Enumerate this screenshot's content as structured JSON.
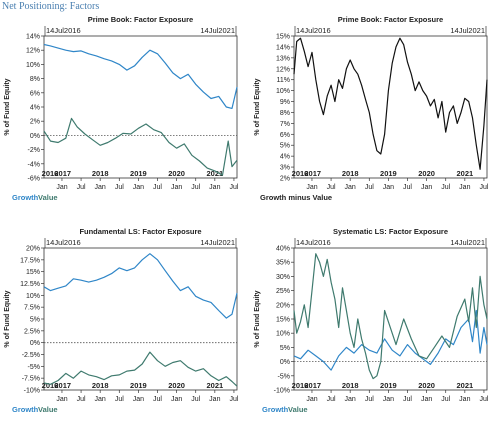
{
  "page": {
    "title": "Net Positioning: Factors"
  },
  "colors": {
    "growth": "#2f86c8",
    "value": "#3f7a6e",
    "spread": "#111111"
  },
  "chart_data": [
    {
      "type": "line",
      "title": "Prime Book: Factor Exposure",
      "start_label": "14Jul2016",
      "end_label": "14Jul2021",
      "ylabel": "% of Fund Equity",
      "ylim": [
        -6,
        14
      ],
      "yticks": [
        14,
        12,
        10,
        8,
        6,
        4,
        2,
        0,
        -2,
        -4,
        -6
      ],
      "ytick_labels": [
        "14%",
        "12%",
        "10%",
        "8%",
        "6%",
        "4%",
        "2%",
        "0%",
        "-2%",
        "-4%",
        "-6%"
      ],
      "xlim": [
        2016.53,
        2021.58
      ],
      "month_ticks": [
        "Jan",
        "Jul",
        "Jan",
        "Jul",
        "Jan",
        "Jul",
        "Jan",
        "Jul",
        "Jan",
        "Jul"
      ],
      "year_labels": [
        "2016",
        "2017",
        "2018",
        "2019",
        "2020",
        "2021"
      ],
      "zero_line": true,
      "legend": [
        "Growth",
        "Value"
      ],
      "series": [
        {
          "name": "Growth",
          "color": "#2f86c8",
          "x": [
            2016.53,
            2016.7,
            2016.9,
            2017.1,
            2017.3,
            2017.5,
            2017.7,
            2017.9,
            2018.1,
            2018.3,
            2018.5,
            2018.7,
            2018.9,
            2019.1,
            2019.3,
            2019.5,
            2019.7,
            2019.9,
            2020.1,
            2020.3,
            2020.5,
            2020.7,
            2020.9,
            2021.1,
            2021.3,
            2021.45,
            2021.58
          ],
          "values": [
            12.8,
            12.6,
            12.3,
            12.0,
            11.8,
            11.9,
            11.5,
            11.2,
            10.8,
            10.5,
            10.0,
            9.2,
            9.8,
            11.0,
            12.0,
            11.5,
            10.2,
            8.8,
            8.0,
            8.6,
            7.2,
            6.1,
            5.2,
            5.5,
            4.0,
            3.8,
            6.8
          ]
        },
        {
          "name": "Value",
          "color": "#3f7a6e",
          "x": [
            2016.53,
            2016.7,
            2016.9,
            2017.1,
            2017.25,
            2017.4,
            2017.6,
            2017.8,
            2018.0,
            2018.2,
            2018.4,
            2018.6,
            2018.8,
            2019.0,
            2019.2,
            2019.4,
            2019.6,
            2019.8,
            2020.0,
            2020.2,
            2020.4,
            2020.6,
            2020.8,
            2021.0,
            2021.2,
            2021.35,
            2021.45,
            2021.58
          ],
          "values": [
            0.6,
            -0.8,
            -1.0,
            -0.4,
            2.4,
            1.2,
            0.2,
            -0.6,
            -1.4,
            -1.0,
            -0.4,
            0.3,
            0.2,
            1.0,
            1.6,
            0.8,
            0.4,
            -1.0,
            -1.8,
            -1.2,
            -2.8,
            -3.6,
            -4.6,
            -5.0,
            -5.6,
            -0.8,
            -4.4,
            -3.5
          ]
        }
      ]
    },
    {
      "type": "line",
      "title": "Prime Book: Factor Exposure",
      "start_label": "14Jul2016",
      "end_label": "14Jul2021",
      "ylabel": "% of Fund Equity",
      "ylim": [
        2,
        15
      ],
      "yticks": [
        15,
        14,
        13,
        12,
        11,
        10,
        9,
        8,
        7,
        6,
        5,
        4,
        3,
        2
      ],
      "ytick_labels": [
        "15%",
        "14%",
        "13%",
        "12%",
        "11%",
        "10%",
        "9%",
        "8%",
        "7%",
        "6%",
        "5%",
        "4%",
        "3%",
        "2%"
      ],
      "xlim": [
        2016.53,
        2021.58
      ],
      "month_ticks": [
        "Jan",
        "Jul",
        "Jan",
        "Jul",
        "Jan",
        "Jul",
        "Jan",
        "Jul",
        "Jan",
        "Jul"
      ],
      "year_labels": [
        "2016",
        "2017",
        "2018",
        "2019",
        "2020",
        "2021"
      ],
      "zero_line": false,
      "legend": [
        "Growth minus Value"
      ],
      "series": [
        {
          "name": "Growth minus Value",
          "color": "#111111",
          "x": [
            2016.53,
            2016.6,
            2016.7,
            2016.8,
            2016.9,
            2017.0,
            2017.1,
            2017.2,
            2017.3,
            2017.4,
            2017.5,
            2017.6,
            2017.7,
            2017.8,
            2017.9,
            2018.0,
            2018.1,
            2018.2,
            2018.3,
            2018.4,
            2018.5,
            2018.6,
            2018.7,
            2018.8,
            2018.9,
            2019.0,
            2019.1,
            2019.2,
            2019.3,
            2019.4,
            2019.5,
            2019.6,
            2019.7,
            2019.8,
            2019.9,
            2020.0,
            2020.1,
            2020.2,
            2020.3,
            2020.4,
            2020.5,
            2020.6,
            2020.7,
            2020.8,
            2020.9,
            2021.0,
            2021.1,
            2021.2,
            2021.3,
            2021.4,
            2021.5,
            2021.58
          ],
          "values": [
            11.5,
            14.5,
            14.8,
            13.6,
            12.2,
            13.5,
            11.0,
            9.0,
            7.8,
            9.5,
            10.5,
            9.0,
            11.0,
            10.2,
            12.0,
            12.8,
            12.0,
            11.5,
            10.5,
            9.2,
            8.0,
            6.0,
            4.5,
            4.2,
            6.0,
            10.0,
            12.5,
            14.0,
            14.8,
            14.2,
            12.6,
            11.5,
            10.0,
            10.8,
            10.0,
            9.5,
            8.6,
            9.2,
            7.5,
            9.0,
            6.2,
            8.0,
            8.6,
            7.0,
            8.0,
            9.3,
            9.0,
            7.5,
            5.0,
            2.8,
            6.8,
            11.0
          ]
        }
      ]
    },
    {
      "type": "line",
      "title": "Fundamental LS: Factor Exposure",
      "start_label": "14Jul2016",
      "end_label": "14Jul2021",
      "ylabel": "% of Fund Equity",
      "ylim": [
        -10,
        20
      ],
      "yticks": [
        20,
        17.5,
        15,
        12.5,
        10,
        7.5,
        5,
        2.5,
        0,
        -2.5,
        -5,
        -7.5,
        -10
      ],
      "ytick_labels": [
        "20%",
        "17.5%",
        "15%",
        "12.5%",
        "10%",
        "7.5%",
        "5%",
        "2.5%",
        "0%",
        "-2.5%",
        "-5%",
        "-7.5%",
        "-10%"
      ],
      "xlim": [
        2016.53,
        2021.58
      ],
      "month_ticks": [
        "Jan",
        "Jul",
        "Jan",
        "Jul",
        "Jan",
        "Jul",
        "Jan",
        "Jul",
        "Jan",
        "Jul"
      ],
      "year_labels": [
        "2016",
        "2017",
        "2018",
        "2019",
        "2020",
        "2021"
      ],
      "zero_line": true,
      "legend": [
        "Growth",
        "Value"
      ],
      "series": [
        {
          "name": "Growth",
          "color": "#2f86c8",
          "x": [
            2016.53,
            2016.7,
            2016.9,
            2017.1,
            2017.3,
            2017.5,
            2017.7,
            2017.9,
            2018.1,
            2018.3,
            2018.5,
            2018.7,
            2018.9,
            2019.1,
            2019.3,
            2019.5,
            2019.7,
            2019.9,
            2020.1,
            2020.3,
            2020.5,
            2020.7,
            2020.9,
            2021.1,
            2021.3,
            2021.45,
            2021.58
          ],
          "values": [
            11.8,
            11.0,
            11.5,
            12.0,
            13.5,
            13.2,
            12.8,
            13.2,
            13.8,
            14.6,
            15.8,
            15.2,
            15.8,
            17.5,
            18.8,
            17.5,
            15.2,
            13.0,
            11.0,
            11.8,
            9.8,
            9.0,
            8.5,
            6.8,
            5.2,
            6.0,
            10.5
          ]
        },
        {
          "name": "Value",
          "color": "#3f7a6e",
          "x": [
            2016.53,
            2016.7,
            2016.9,
            2017.1,
            2017.3,
            2017.5,
            2017.7,
            2017.9,
            2018.1,
            2018.3,
            2018.5,
            2018.7,
            2018.9,
            2019.1,
            2019.3,
            2019.5,
            2019.7,
            2019.9,
            2020.1,
            2020.3,
            2020.5,
            2020.7,
            2020.9,
            2021.1,
            2021.3,
            2021.45,
            2021.58
          ],
          "values": [
            -8.5,
            -8.8,
            -8.0,
            -6.5,
            -7.5,
            -6.0,
            -6.8,
            -7.2,
            -7.8,
            -7.0,
            -6.8,
            -6.0,
            -5.8,
            -4.5,
            -2.0,
            -3.8,
            -5.0,
            -4.2,
            -3.8,
            -5.2,
            -6.0,
            -5.5,
            -7.0,
            -8.0,
            -7.2,
            -8.2,
            -9.2
          ]
        }
      ]
    },
    {
      "type": "line",
      "title": "Systematic LS: Factor Exposure",
      "start_label": "14Jul2016",
      "end_label": "14Jul2021",
      "ylabel": "% of Fund Equity",
      "ylim": [
        -10,
        40
      ],
      "yticks": [
        40,
        35,
        30,
        25,
        20,
        15,
        10,
        5,
        0,
        -5,
        -10
      ],
      "ytick_labels": [
        "40%",
        "35%",
        "30%",
        "25%",
        "20%",
        "15%",
        "10%",
        "5%",
        "0%",
        "-5%",
        "-10%"
      ],
      "xlim": [
        2016.53,
        2021.58
      ],
      "month_ticks": [
        "Jan",
        "Jul",
        "Jan",
        "Jul",
        "Jan",
        "Jul",
        "Jan",
        "Jul",
        "Jan",
        "Jul"
      ],
      "year_labels": [
        "2016",
        "2017",
        "2018",
        "2019",
        "2020",
        "2021"
      ],
      "zero_line": true,
      "legend": [
        "Growth",
        "Value"
      ],
      "series": [
        {
          "name": "Growth",
          "color": "#2f86c8",
          "x": [
            2016.53,
            2016.7,
            2016.9,
            2017.1,
            2017.3,
            2017.5,
            2017.7,
            2017.9,
            2018.1,
            2018.3,
            2018.5,
            2018.7,
            2018.9,
            2019.1,
            2019.3,
            2019.5,
            2019.7,
            2019.9,
            2020.1,
            2020.3,
            2020.5,
            2020.7,
            2020.9,
            2021.1,
            2021.2,
            2021.3,
            2021.4,
            2021.5,
            2021.58
          ],
          "values": [
            2.0,
            1.0,
            4.0,
            2.0,
            0.0,
            -3.0,
            2.0,
            5.0,
            3.0,
            6.0,
            4.0,
            3.0,
            8.0,
            4.0,
            2.0,
            6.0,
            3.0,
            1.0,
            -1.0,
            3.0,
            8.0,
            6.0,
            12.0,
            15.0,
            7.0,
            18.0,
            3.0,
            12.0,
            6.0
          ]
        },
        {
          "name": "Value",
          "color": "#3f7a6e",
          "x": [
            2016.53,
            2016.6,
            2016.7,
            2016.8,
            2016.9,
            2017.0,
            2017.1,
            2017.2,
            2017.3,
            2017.4,
            2017.5,
            2017.6,
            2017.7,
            2017.8,
            2017.9,
            2018.0,
            2018.1,
            2018.2,
            2018.3,
            2018.4,
            2018.5,
            2018.6,
            2018.7,
            2018.8,
            2018.9,
            2019.0,
            2019.2,
            2019.4,
            2019.6,
            2019.8,
            2020.0,
            2020.2,
            2020.4,
            2020.6,
            2020.8,
            2021.0,
            2021.1,
            2021.2,
            2021.3,
            2021.4,
            2021.5,
            2021.58
          ],
          "values": [
            18.0,
            10.0,
            14.0,
            20.0,
            12.0,
            25.0,
            38.0,
            35.0,
            30.0,
            36.0,
            28.0,
            22.0,
            12.0,
            26.0,
            18.0,
            10.0,
            5.0,
            15.0,
            8.0,
            3.0,
            -3.0,
            -6.0,
            -5.0,
            0.0,
            18.0,
            14.0,
            6.0,
            15.0,
            8.0,
            2.0,
            1.0,
            5.0,
            9.0,
            5.0,
            16.0,
            22.0,
            14.0,
            26.0,
            12.0,
            30.0,
            20.0,
            15.0
          ]
        }
      ]
    }
  ]
}
